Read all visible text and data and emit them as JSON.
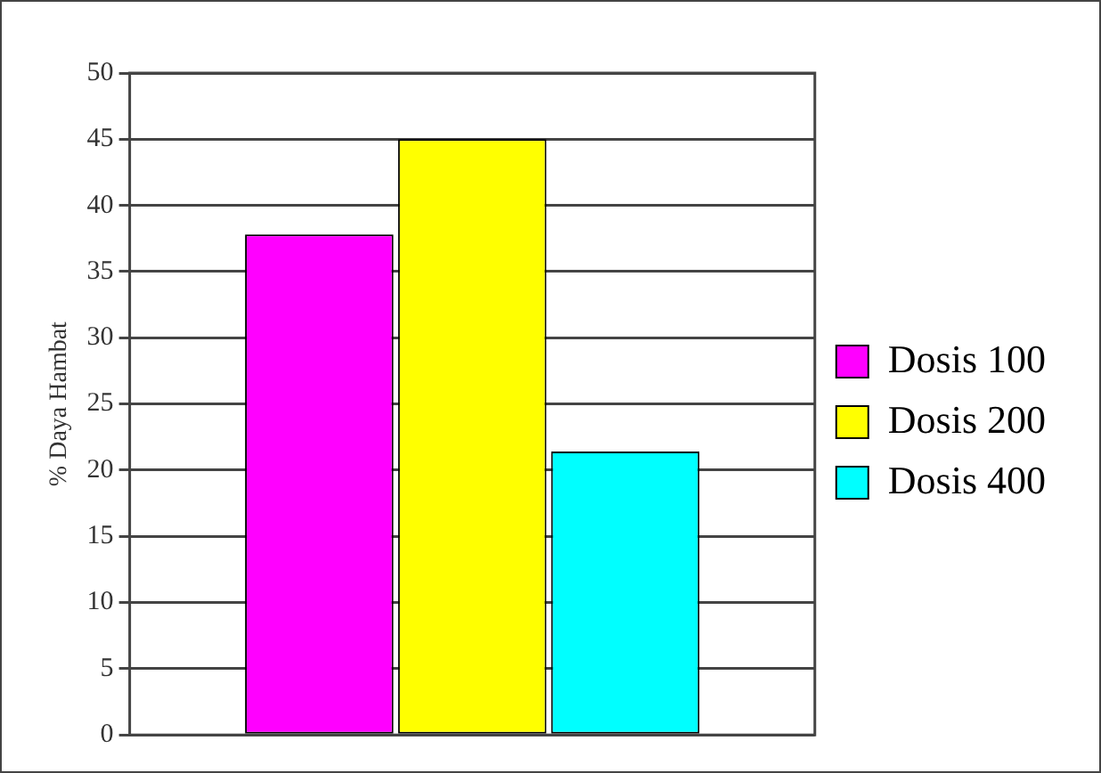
{
  "chart_data": {
    "type": "bar",
    "ylabel": "% Daya Hambat",
    "categories": [
      null
    ],
    "series": [
      {
        "name": "Dosis 100",
        "color": "#ff00ff",
        "values": [
          37.8
        ]
      },
      {
        "name": "Dosis 200",
        "color": "#ffff00",
        "values": [
          45
        ]
      },
      {
        "name": "Dosis 400",
        "color": "#00ffff",
        "values": [
          21.4
        ]
      }
    ],
    "ylim": [
      0,
      50
    ],
    "yticks": [
      0,
      5,
      10,
      15,
      20,
      25,
      30,
      35,
      40,
      45,
      50
    ],
    "grid": "y",
    "legend": "right"
  }
}
